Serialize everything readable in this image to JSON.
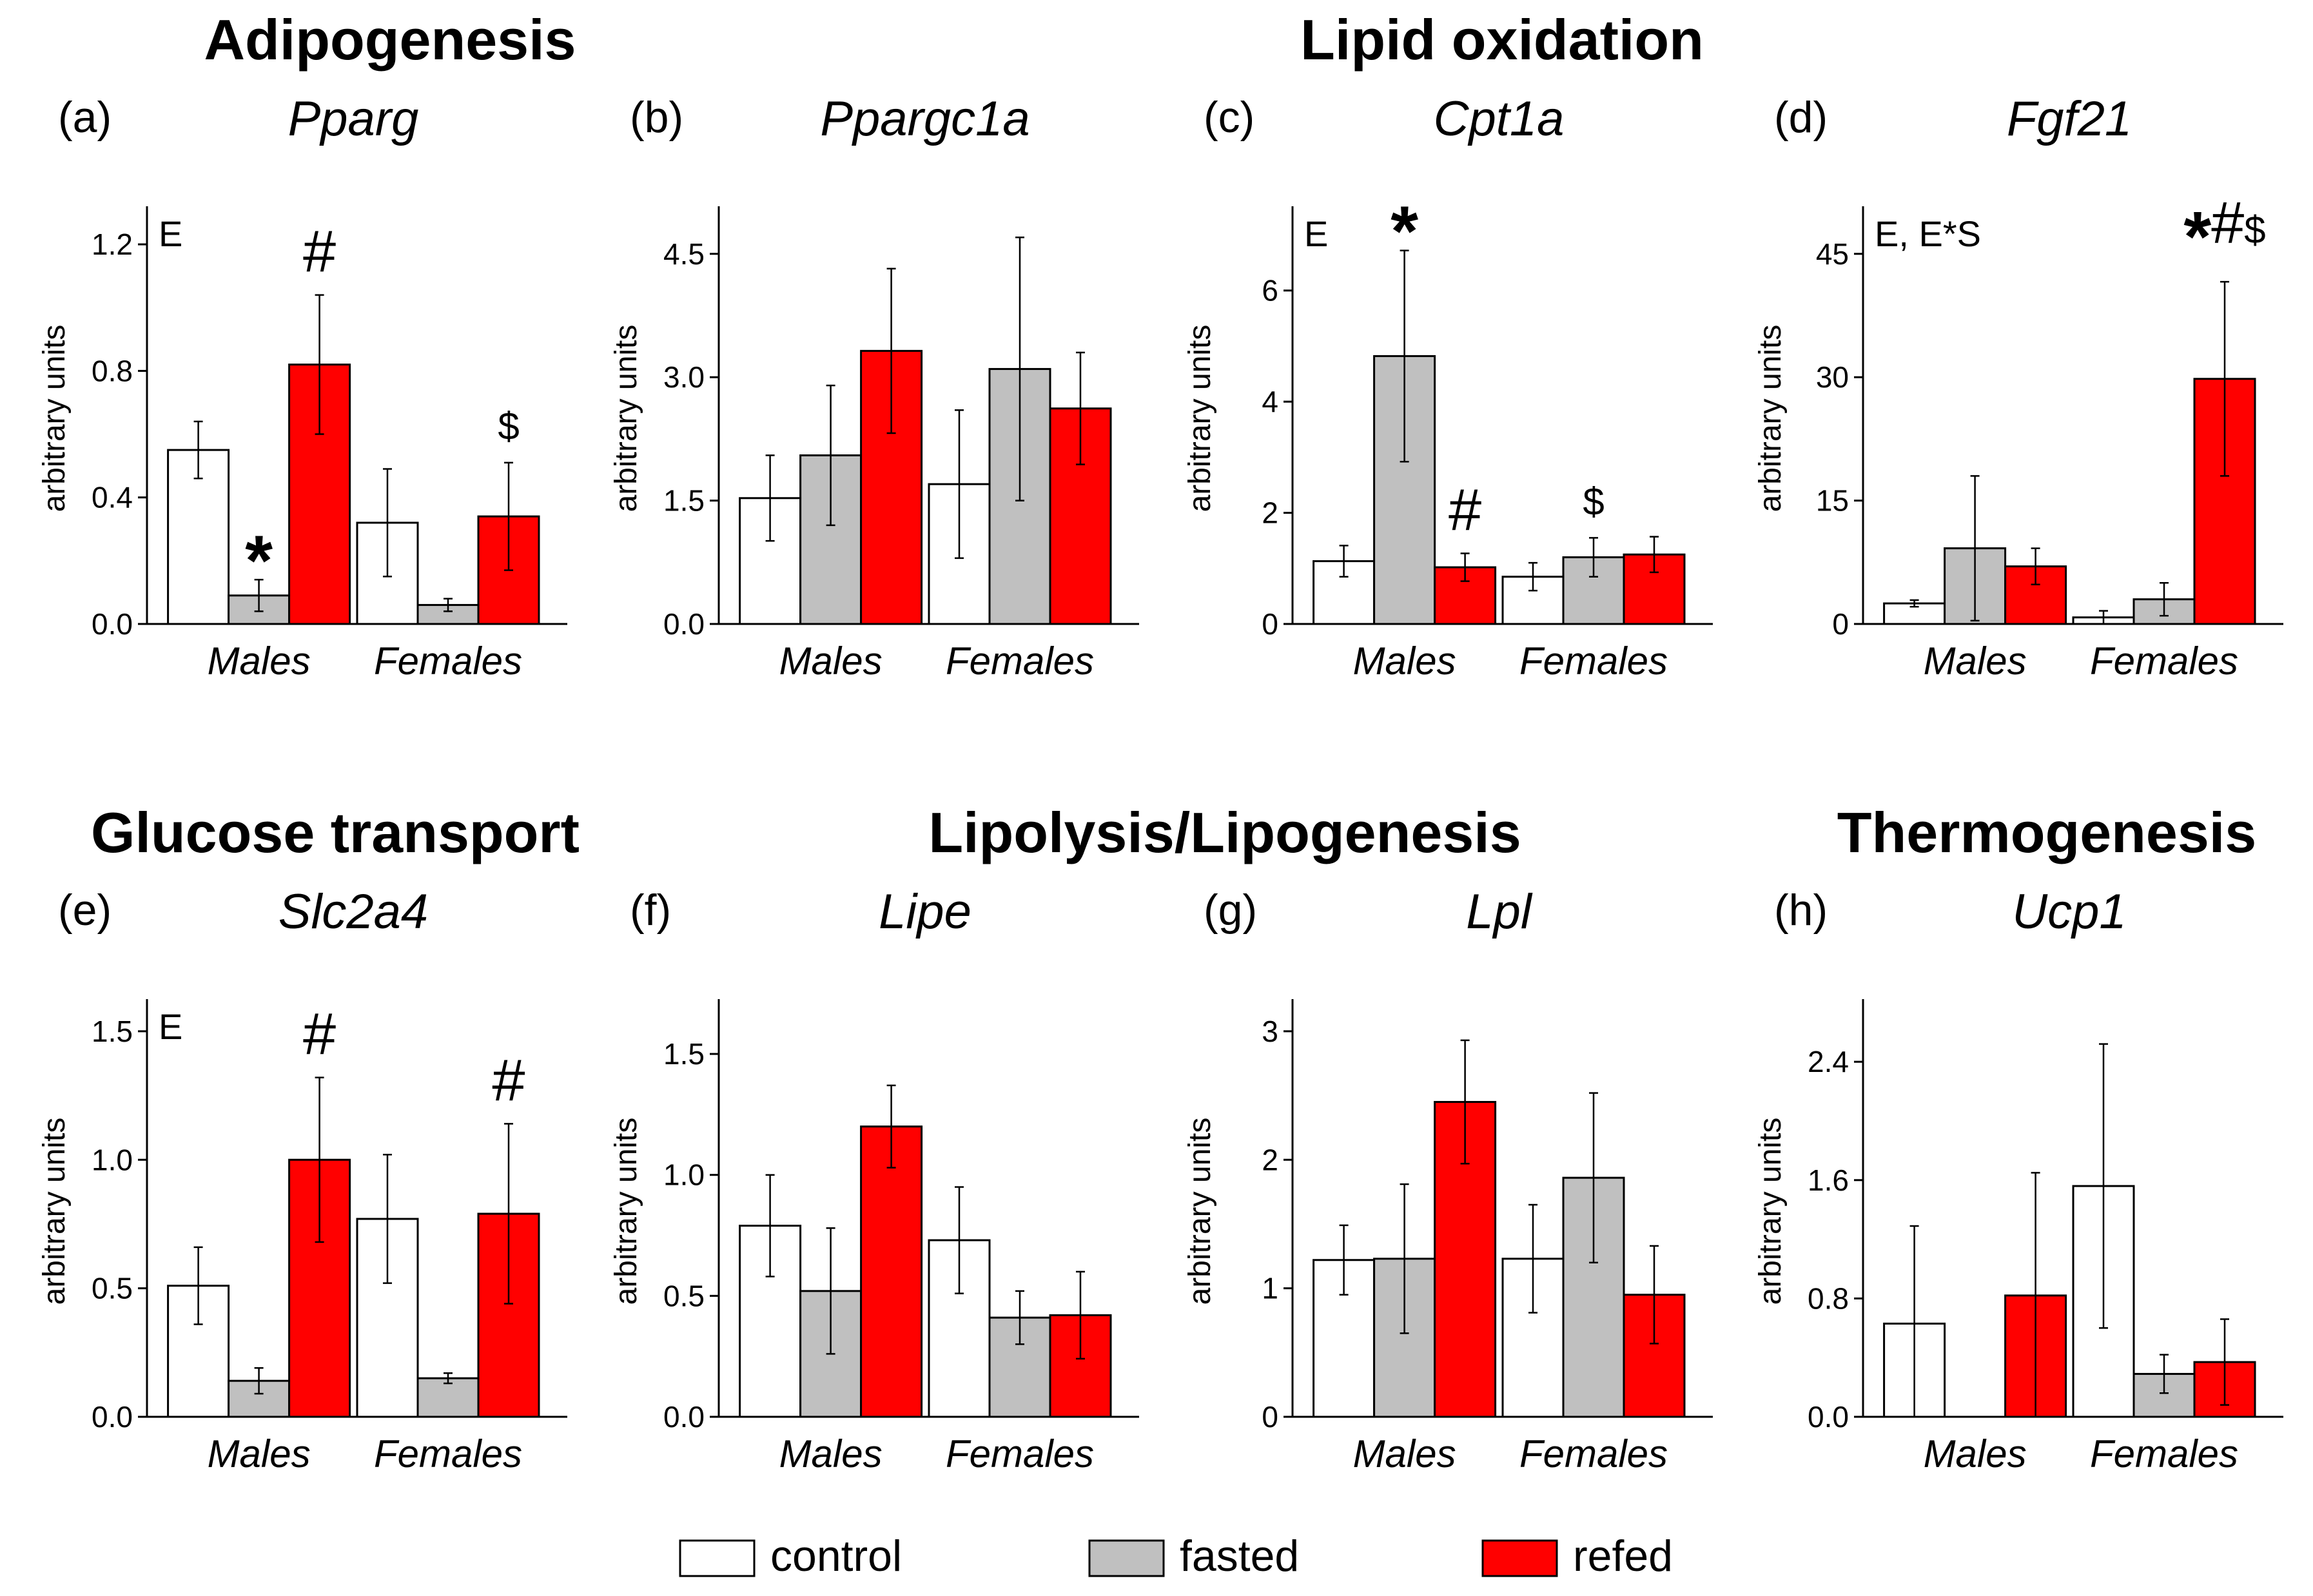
{
  "figure": {
    "section_titles": {
      "adipogenesis": "Adipogenesis",
      "lipid_oxidation": "Lipid oxidation",
      "glucose_transport": "Glucose transport",
      "lipolysis": "Lipolysis/Lipogenesis",
      "thermogenesis": "Thermogenesis"
    },
    "legend": {
      "control": "control",
      "fasted": "fasted",
      "refed": "refed"
    },
    "colors": {
      "control": "#ffffff",
      "fasted": "#c0c0c0",
      "refed": "#ff0000"
    }
  },
  "chart_data": [
    {
      "type": "bar",
      "panel": "(a)",
      "title": "Pparg",
      "ylabel": "arbitrary units",
      "categories": [
        "Males",
        "Females"
      ],
      "ylim": [
        0,
        1.3
      ],
      "yticks": [
        "0.0",
        "0.4",
        "0.8",
        "1.2"
      ],
      "annotation": "E",
      "series": [
        {
          "name": "control",
          "values": [
            0.55,
            0.32
          ],
          "errors": [
            0.09,
            0.17
          ]
        },
        {
          "name": "fasted",
          "values": [
            0.09,
            0.06
          ],
          "errors": [
            0.05,
            0.02
          ]
        },
        {
          "name": "refed",
          "values": [
            0.82,
            0.34
          ],
          "errors": [
            0.22,
            0.17
          ]
        }
      ],
      "significance": [
        {
          "label": "*",
          "category": "Males",
          "series": "fasted"
        },
        {
          "label": "#",
          "category": "Males",
          "series": "refed"
        },
        {
          "label": "$",
          "category": "Females",
          "series": "refed"
        }
      ]
    },
    {
      "type": "bar",
      "panel": "(b)",
      "title": "Ppargc1a",
      "ylabel": "arbitrary units",
      "categories": [
        "Males",
        "Females"
      ],
      "ylim": [
        0,
        5.0
      ],
      "yticks": [
        "0.0",
        "1.5",
        "3.0",
        "4.5"
      ],
      "annotation": "",
      "series": [
        {
          "name": "control",
          "values": [
            1.53,
            1.7
          ],
          "errors": [
            0.52,
            0.9
          ]
        },
        {
          "name": "fasted",
          "values": [
            2.05,
            3.1
          ],
          "errors": [
            0.85,
            1.6
          ]
        },
        {
          "name": "refed",
          "values": [
            3.32,
            2.62
          ],
          "errors": [
            1.0,
            0.68
          ]
        }
      ],
      "significance": []
    },
    {
      "type": "bar",
      "panel": "(c)",
      "title": "Cpt1a",
      "ylabel": "arbitrary units",
      "categories": [
        "Males",
        "Females"
      ],
      "ylim": [
        0,
        7.4
      ],
      "yticks": [
        "0",
        "2",
        "4",
        "6"
      ],
      "annotation": "E",
      "series": [
        {
          "name": "control",
          "values": [
            1.13,
            0.85
          ],
          "errors": [
            0.28,
            0.25
          ]
        },
        {
          "name": "fasted",
          "values": [
            4.82,
            1.2
          ],
          "errors": [
            1.9,
            0.35
          ]
        },
        {
          "name": "refed",
          "values": [
            1.02,
            1.25
          ],
          "errors": [
            0.25,
            0.32
          ]
        }
      ],
      "significance": [
        {
          "label": "*",
          "category": "Males",
          "series": "fasted"
        },
        {
          "label": "#",
          "category": "Males",
          "series": "refed"
        },
        {
          "label": "$",
          "category": "Females",
          "series": "fasted"
        }
      ]
    },
    {
      "type": "bar",
      "panel": "(d)",
      "title": "Fgf21",
      "ylabel": "arbitrary units",
      "categories": [
        "Males",
        "Females"
      ],
      "ylim": [
        0,
        50
      ],
      "yticks": [
        "0",
        "15",
        "30",
        "45"
      ],
      "annotation": "E, E*S",
      "series": [
        {
          "name": "control",
          "values": [
            2.5,
            0.8
          ],
          "errors": [
            0.4,
            0.8
          ]
        },
        {
          "name": "fasted",
          "values": [
            9.2,
            3.0
          ],
          "errors": [
            8.8,
            2.0
          ]
        },
        {
          "name": "refed",
          "values": [
            7.0,
            29.8
          ],
          "errors": [
            2.2,
            11.8
          ]
        }
      ],
      "significance": [
        {
          "label": "*#$",
          "category": "Females",
          "series": "refed"
        }
      ]
    },
    {
      "type": "bar",
      "panel": "(e)",
      "title": "Slc2a4",
      "ylabel": "arbitrary units",
      "categories": [
        "Males",
        "Females"
      ],
      "ylim": [
        0,
        1.6
      ],
      "yticks": [
        "0.0",
        "0.5",
        "1.0",
        "1.5"
      ],
      "annotation": "E",
      "series": [
        {
          "name": "control",
          "values": [
            0.51,
            0.77
          ],
          "errors": [
            0.15,
            0.25
          ]
        },
        {
          "name": "fasted",
          "values": [
            0.14,
            0.15
          ],
          "errors": [
            0.05,
            0.02
          ]
        },
        {
          "name": "refed",
          "values": [
            1.0,
            0.79
          ],
          "errors": [
            0.32,
            0.35
          ]
        }
      ],
      "significance": [
        {
          "label": "#",
          "category": "Males",
          "series": "refed"
        },
        {
          "label": "#",
          "category": "Females",
          "series": "refed"
        }
      ]
    },
    {
      "type": "bar",
      "panel": "(f)",
      "title": "Lipe",
      "ylabel": "arbitrary units",
      "categories": [
        "Males",
        "Females"
      ],
      "ylim": [
        0,
        1.7
      ],
      "yticks": [
        "0.0",
        "0.5",
        "1.0",
        "1.5"
      ],
      "annotation": "",
      "series": [
        {
          "name": "control",
          "values": [
            0.79,
            0.73
          ],
          "errors": [
            0.21,
            0.22
          ]
        },
        {
          "name": "fasted",
          "values": [
            0.52,
            0.41
          ],
          "errors": [
            0.26,
            0.11
          ]
        },
        {
          "name": "refed",
          "values": [
            1.2,
            0.42
          ],
          "errors": [
            0.17,
            0.18
          ]
        }
      ],
      "significance": []
    },
    {
      "type": "bar",
      "panel": "(g)",
      "title": "Lpl",
      "ylabel": "arbitrary units",
      "categories": [
        "Males",
        "Females"
      ],
      "ylim": [
        0,
        3.2
      ],
      "yticks": [
        "0",
        "1",
        "2",
        "3"
      ],
      "annotation": "",
      "series": [
        {
          "name": "control",
          "values": [
            1.22,
            1.23
          ],
          "errors": [
            0.27,
            0.42
          ]
        },
        {
          "name": "fasted",
          "values": [
            1.23,
            1.86
          ],
          "errors": [
            0.58,
            0.66
          ]
        },
        {
          "name": "refed",
          "values": [
            2.45,
            0.95
          ],
          "errors": [
            0.48,
            0.38
          ]
        }
      ],
      "significance": []
    },
    {
      "type": "bar",
      "panel": "(h)",
      "title": "Ucp1",
      "ylabel": "arbitrary units",
      "categories": [
        "Males",
        "Females"
      ],
      "ylim": [
        0,
        2.78
      ],
      "yticks": [
        "0.0",
        "0.8",
        "1.6",
        "2.4"
      ],
      "annotation": "",
      "series": [
        {
          "name": "control",
          "values": [
            0.63,
            1.56
          ],
          "errors": [
            0.66,
            0.96
          ]
        },
        {
          "name": "fasted",
          "values": [
            0.0,
            0.29
          ],
          "errors": [
            0.0,
            0.13
          ]
        },
        {
          "name": "refed",
          "values": [
            0.82,
            0.37
          ],
          "errors": [
            0.83,
            0.29
          ]
        }
      ],
      "significance": []
    }
  ]
}
